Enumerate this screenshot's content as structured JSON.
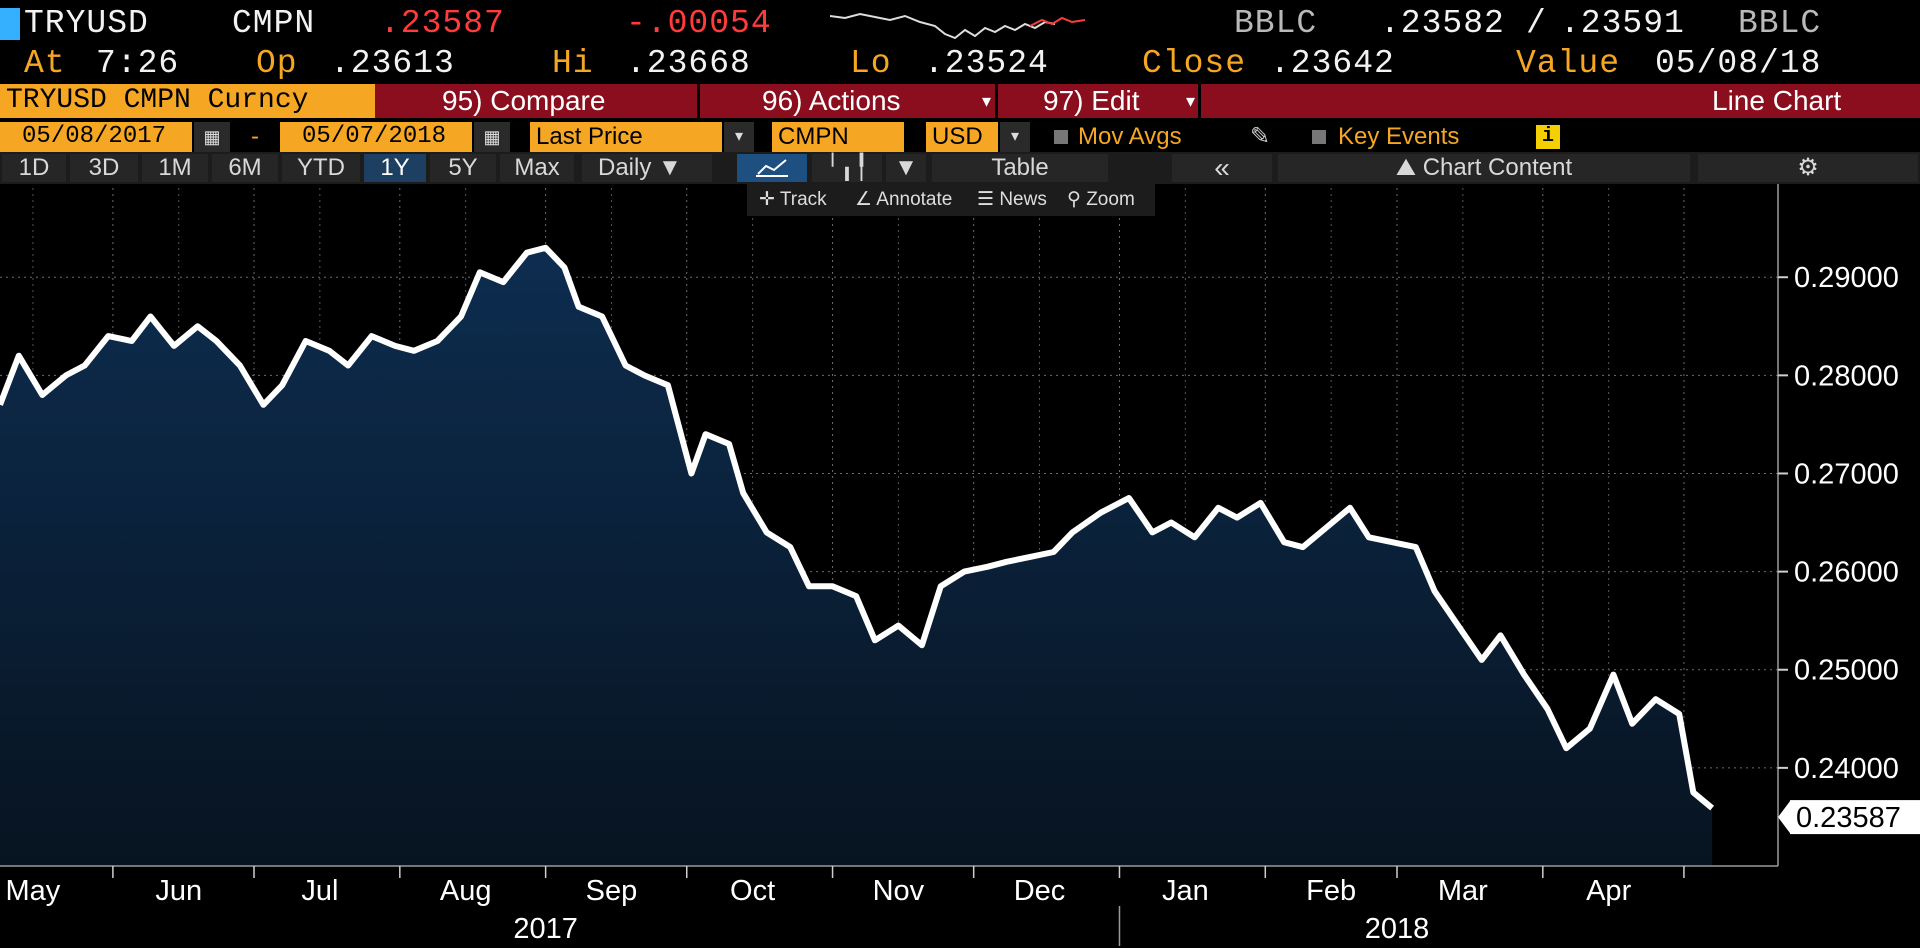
{
  "quote": {
    "ticker": "TRYUSD",
    "source": "CMPN",
    "last": ".23587",
    "change": "-.00054",
    "bid_src": "BBLC",
    "bid": ".23582",
    "sep": "/",
    "ask": ".23591",
    "ask_src": "BBLC",
    "at_label": "At",
    "time": "7:26",
    "open_label": "Op",
    "open": ".23613",
    "high_label": "Hi",
    "high": ".23668",
    "low_label": "Lo",
    "low": ".23524",
    "close_label": "Close",
    "close": ".23642",
    "value_label": "Value",
    "value_date": "05/08/18"
  },
  "funcbar": {
    "security": "TRYUSD CMPN Curncy",
    "compare": "95) Compare",
    "actions": "96) Actions",
    "edit": "97) Edit",
    "chart_type": "Line Chart"
  },
  "settings": {
    "start_date": "05/08/2017",
    "dash": "-",
    "end_date": "05/07/2018",
    "field": "Last Price",
    "source": "CMPN",
    "currency": "USD",
    "mov_avgs": "Mov Avgs",
    "key_events": "Key Events",
    "info_icon": "i"
  },
  "ranges": [
    "1D",
    "3D",
    "1M",
    "6M",
    "YTD",
    "1Y",
    "5Y",
    "Max"
  ],
  "selected_range": "1Y",
  "periodicity": "Daily",
  "table_label": "Table",
  "collapse_label": "«",
  "chart_content_label": "Chart Content",
  "toolbar": {
    "track": "Track",
    "annotate": "Annotate",
    "news": "News",
    "zoom": "Zoom"
  },
  "colors": {
    "accent_orange": "#f5a623",
    "bar_red": "#8b0e1e",
    "negative": "#ff3b3b",
    "area_top": "#0d2d50",
    "area_bottom": "#071320",
    "line": "#ffffff"
  },
  "chart_data": {
    "type": "area",
    "series": [
      {
        "last_label": "0.23587",
        "x": [
          "2017-05-08",
          "2017-05-12",
          "2017-05-17",
          "2017-05-22",
          "2017-05-26",
          "2017-05-31",
          "2017-06-05",
          "2017-06-09",
          "2017-06-14",
          "2017-06-19",
          "2017-06-23",
          "2017-06-28",
          "2017-07-03",
          "2017-07-07",
          "2017-07-12",
          "2017-07-17",
          "2017-07-21",
          "2017-07-26",
          "2017-07-31",
          "2017-08-04",
          "2017-08-09",
          "2017-08-14",
          "2017-08-18",
          "2017-08-23",
          "2017-08-28",
          "2017-09-01",
          "2017-09-05",
          "2017-09-08",
          "2017-09-13",
          "2017-09-18",
          "2017-09-22",
          "2017-09-27",
          "2017-10-02",
          "2017-10-05",
          "2017-10-10",
          "2017-10-13",
          "2017-10-18",
          "2017-10-23",
          "2017-10-27",
          "2017-11-01",
          "2017-11-06",
          "2017-11-10",
          "2017-11-15",
          "2017-11-20",
          "2017-11-24",
          "2017-11-29",
          "2017-12-04",
          "2017-12-08",
          "2017-12-13",
          "2017-12-18",
          "2017-12-22",
          "2017-12-28",
          "2018-01-03",
          "2018-01-08",
          "2018-01-12",
          "2018-01-17",
          "2018-01-22",
          "2018-01-26",
          "2018-01-31",
          "2018-02-05",
          "2018-02-09",
          "2018-02-14",
          "2018-02-19",
          "2018-02-23",
          "2018-02-28",
          "2018-03-05",
          "2018-03-09",
          "2018-03-14",
          "2018-03-19",
          "2018-03-23",
          "2018-03-28",
          "2018-04-02",
          "2018-04-06",
          "2018-04-11",
          "2018-04-16",
          "2018-04-20",
          "2018-04-25",
          "2018-04-30",
          "2018-05-03",
          "2018-05-07"
        ],
        "values": [
          0.277,
          0.282,
          0.278,
          0.28,
          0.281,
          0.284,
          0.2835,
          0.286,
          0.283,
          0.285,
          0.2835,
          0.281,
          0.277,
          0.279,
          0.2835,
          0.2825,
          0.281,
          0.284,
          0.283,
          0.2825,
          0.2835,
          0.286,
          0.2905,
          0.2895,
          0.2925,
          0.293,
          0.291,
          0.287,
          0.286,
          0.281,
          0.28,
          0.279,
          0.27,
          0.274,
          0.273,
          0.268,
          0.264,
          0.2625,
          0.2585,
          0.2585,
          0.2575,
          0.253,
          0.2545,
          0.2525,
          0.2585,
          0.26,
          0.2605,
          0.261,
          0.2615,
          0.262,
          0.264,
          0.266,
          0.2675,
          0.264,
          0.265,
          0.2635,
          0.2665,
          0.2655,
          0.267,
          0.263,
          0.2625,
          0.2645,
          0.2665,
          0.2635,
          0.263,
          0.2625,
          0.258,
          0.2545,
          0.251,
          0.2535,
          0.2495,
          0.246,
          0.242,
          0.244,
          0.2495,
          0.2445,
          0.247,
          0.2455,
          0.2375,
          0.2359
        ]
      }
    ],
    "ylim": [
      0.23,
      0.2995
    ],
    "yticks": [
      "0.29000",
      "0.28000",
      "0.27000",
      "0.26000",
      "0.25000",
      "0.24000"
    ],
    "ytick_values": [
      0.29,
      0.28,
      0.27,
      0.26,
      0.25,
      0.24
    ],
    "month_labels": [
      "May",
      "Jun",
      "Jul",
      "Aug",
      "Sep",
      "Oct",
      "Nov",
      "Dec",
      "Jan",
      "Feb",
      "Mar",
      "Apr"
    ],
    "month_dates": [
      "2017-05-15",
      "2017-06-15",
      "2017-07-15",
      "2017-08-15",
      "2017-09-15",
      "2017-10-15",
      "2017-11-15",
      "2017-12-15",
      "2018-01-15",
      "2018-02-15",
      "2018-03-15",
      "2018-04-15"
    ],
    "year_labels": [
      "2017",
      "2018"
    ],
    "year_dates": [
      "2017-09-01",
      "2018-03-01"
    ],
    "year_boundary_date": "2018-01-01",
    "xlim": [
      "2017-05-08",
      "2018-05-21"
    ],
    "grid": true
  }
}
